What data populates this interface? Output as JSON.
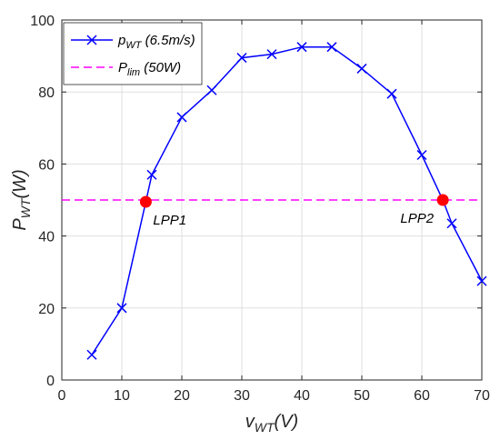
{
  "chart_data": {
    "type": "line",
    "xlabel": {
      "main": "v",
      "sub": "WT",
      "suffix": "(V)"
    },
    "ylabel": {
      "main": "P",
      "sub": "WT",
      "suffix": "(W)"
    },
    "xlim": [
      0,
      70
    ],
    "ylim": [
      0,
      100
    ],
    "xticks": [
      0,
      10,
      20,
      30,
      40,
      50,
      60,
      70
    ],
    "yticks": [
      0,
      20,
      40,
      60,
      80,
      100
    ],
    "grid": true,
    "legend_position": "top-left",
    "series": [
      {
        "name": {
          "main": "p",
          "sub": "WT",
          "suffix": " (6.5m/s)"
        },
        "color": "#0000ff",
        "marker": "x",
        "x": [
          5,
          10,
          14,
          15,
          20,
          25,
          30,
          35,
          40,
          45,
          50,
          55,
          60,
          63.5,
          65,
          70
        ],
        "y": [
          7,
          20,
          49.5,
          57,
          73,
          80.5,
          89.5,
          90.5,
          92.5,
          92.5,
          86.5,
          79.5,
          62.5,
          50,
          43.5,
          27.5
        ],
        "marker_x": [
          5,
          10,
          15,
          20,
          25,
          30,
          35,
          40,
          45,
          50,
          55,
          60,
          65,
          70
        ],
        "marker_y": [
          7,
          20,
          57,
          73,
          80.5,
          89.5,
          90.5,
          92.5,
          92.5,
          86.5,
          79.5,
          62.5,
          43.5,
          27.5
        ]
      },
      {
        "name": {
          "main": "P",
          "sub": "lim",
          "suffix": " (50W)"
        },
        "color": "#ff00ff",
        "style": "dashed",
        "x": [
          0,
          70
        ],
        "y": [
          50,
          50
        ]
      }
    ],
    "points": [
      {
        "label": "LPP1",
        "x": 14,
        "y": 49.5,
        "color": "#ff0000"
      },
      {
        "label": "LPP2",
        "x": 63.5,
        "y": 50,
        "color": "#ff0000"
      }
    ]
  }
}
